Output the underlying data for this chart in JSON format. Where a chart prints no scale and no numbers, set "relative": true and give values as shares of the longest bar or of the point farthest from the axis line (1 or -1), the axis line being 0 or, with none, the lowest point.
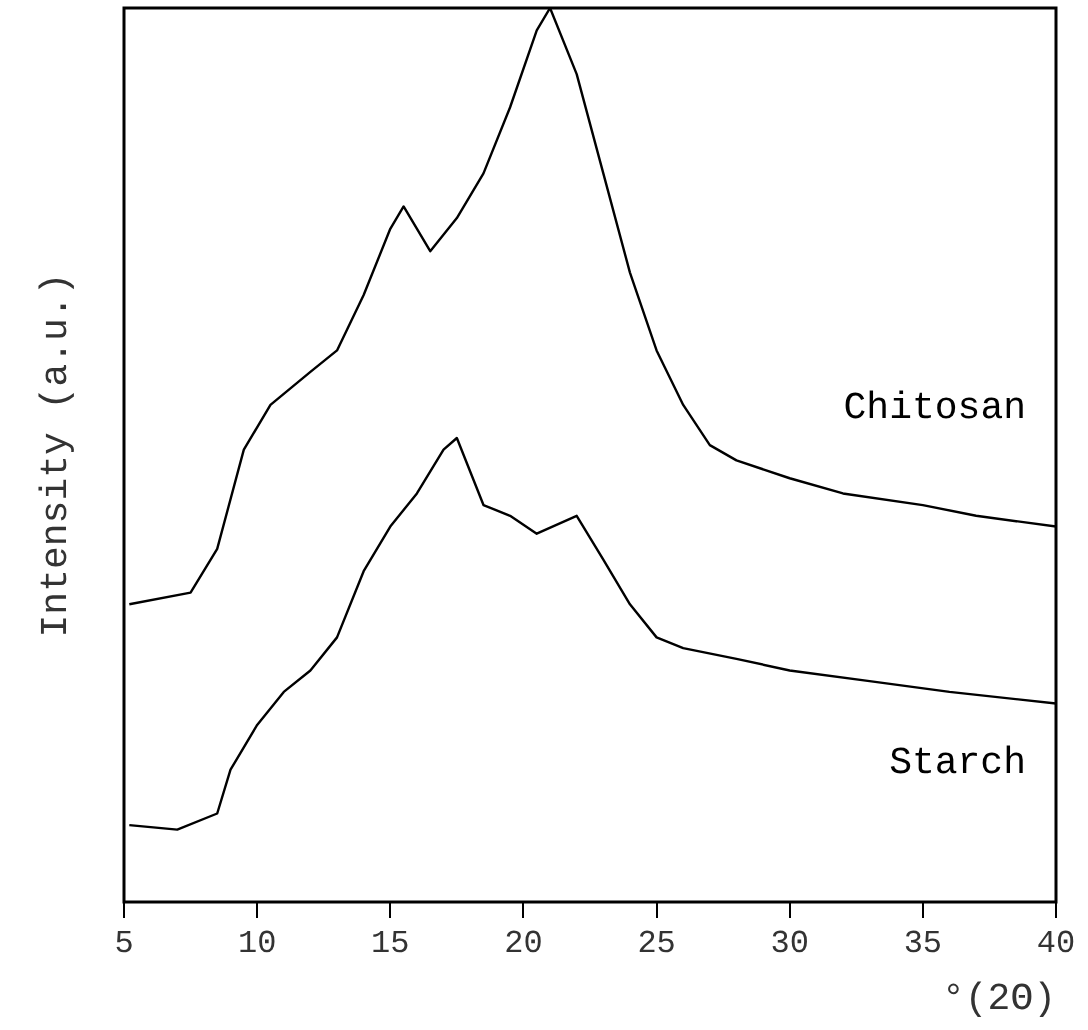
{
  "chart_data": {
    "type": "line",
    "xlabel": "°(2Θ)",
    "ylabel": "Intensity (a.u.)",
    "relative": true,
    "xlim": [
      5,
      40
    ],
    "xticks": [
      5,
      10,
      15,
      20,
      25,
      30,
      35,
      40
    ],
    "grid": false,
    "legend": false,
    "marker": "none",
    "series": [
      {
        "name": "Chitosan",
        "color": "#000000",
        "x": [
          5.2,
          7.5,
          8.5,
          9.5,
          10.5,
          12,
          13,
          14,
          15,
          15.5,
          16.5,
          17.5,
          18.5,
          19.5,
          20.5,
          21,
          22,
          23,
          24,
          25,
          26,
          27,
          28,
          30,
          32,
          35,
          37,
          40
        ],
        "values": [
          0.333,
          0.346,
          0.395,
          0.506,
          0.556,
          0.593,
          0.617,
          0.679,
          0.753,
          0.778,
          0.728,
          0.765,
          0.815,
          0.889,
          0.975,
          1,
          0.926,
          0.815,
          0.704,
          0.617,
          0.556,
          0.511,
          0.494,
          0.474,
          0.457,
          0.444,
          0.432,
          0.42
        ]
      },
      {
        "name": "Starch",
        "color": "#000000",
        "x": [
          5.2,
          7,
          8.5,
          9,
          10,
          11,
          12,
          13,
          14,
          15,
          16,
          17,
          17.5,
          18.5,
          19.5,
          20.5,
          22,
          23,
          24,
          25,
          26,
          28,
          30,
          33,
          36,
          40
        ],
        "values": [
          0.086,
          0.081,
          0.099,
          0.148,
          0.198,
          0.235,
          0.259,
          0.296,
          0.37,
          0.42,
          0.457,
          0.506,
          0.519,
          0.444,
          0.432,
          0.412,
          0.432,
          0.383,
          0.333,
          0.296,
          0.284,
          0.272,
          0.259,
          0.247,
          0.235,
          0.222
        ]
      }
    ]
  }
}
